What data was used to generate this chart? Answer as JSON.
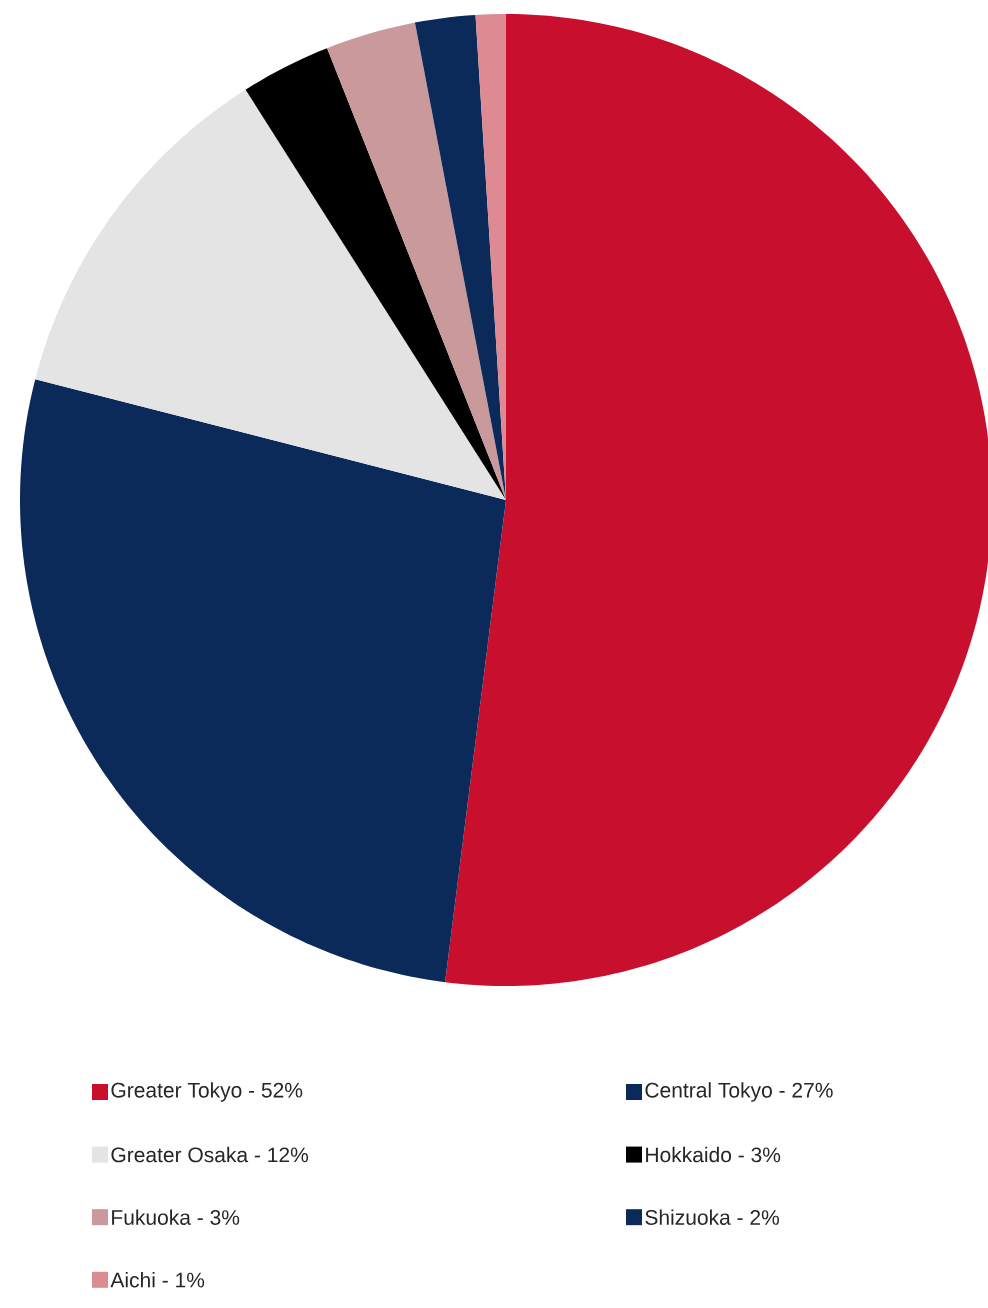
{
  "chart_data": {
    "type": "pie",
    "legend": "bottom",
    "categories": [
      "Greater Tokyo - 52%",
      "Central Tokyo - 27%",
      "Greater Osaka - 12%",
      "Hokkaido - 3%",
      "Fukuoka - 3%",
      "Shizuoka - 2%",
      "Aichi - 1%"
    ],
    "values": [
      52,
      27,
      12,
      3,
      3,
      2,
      1
    ],
    "colors": [
      "#c8102e",
      "#0b2a5a",
      "#e4e4e4",
      "#000000",
      "#c9999c",
      "#0b2a5a",
      "#dd8a92"
    ]
  }
}
